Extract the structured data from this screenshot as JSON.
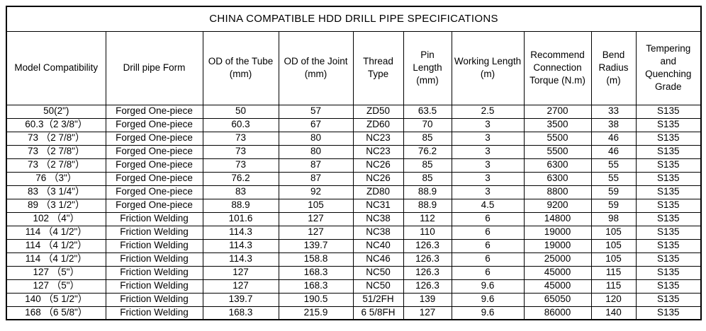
{
  "table": {
    "title": "CHINA COMPATIBLE HDD DRILL PIPE SPECIFICATIONS",
    "headers": [
      "Model Compatibility",
      "Drill pipe Form",
      "OD of the Tube (mm)",
      "OD of the Joint (mm)",
      "Thread Type",
      "Pin Length (mm)",
      "Working Length (m)",
      "Recommend Connection Torque (N.m)",
      "Bend Radius (m)",
      "Tempering and Quenching Grade"
    ],
    "rows": [
      [
        "50(2\")",
        "Forged One-piece",
        "50",
        "57",
        "ZD50",
        "63.5",
        "2.5",
        "2700",
        "33",
        "S135"
      ],
      [
        "60.3（2 3/8\"）",
        "Forged One-piece",
        "60.3",
        "67",
        "ZD60",
        "70",
        "3",
        "3500",
        "38",
        "S135"
      ],
      [
        "73 （2 7/8\"）",
        "Forged One-piece",
        "73",
        "80",
        "NC23",
        "85",
        "3",
        "5500",
        "46",
        "S135"
      ],
      [
        "73 （2 7/8\"）",
        "Forged One-piece",
        "73",
        "80",
        "NC23",
        "76.2",
        "3",
        "5500",
        "46",
        "S135"
      ],
      [
        "73 （2 7/8\"）",
        "Forged One-piece",
        "73",
        "87",
        "NC26",
        "85",
        "3",
        "6300",
        "55",
        "S135"
      ],
      [
        "76 （3\"）",
        "Forged One-piece",
        "76.2",
        "87",
        "NC26",
        "85",
        "3",
        "6300",
        "55",
        "S135"
      ],
      [
        "83 （3 1/4\"）",
        "Forged One-piece",
        "83",
        "92",
        "ZD80",
        "88.9",
        "3",
        "8800",
        "59",
        "S135"
      ],
      [
        "89 （3 1/2\"）",
        "Forged One-piece",
        "88.9",
        "105",
        "NC31",
        "88.9",
        "4.5",
        "9200",
        "59",
        "S135"
      ],
      [
        "102 （4\"）",
        "Friction Welding",
        "101.6",
        "127",
        "NC38",
        "112",
        "6",
        "14800",
        "98",
        "S135"
      ],
      [
        "114 （4 1/2\"）",
        "Friction Welding",
        "114.3",
        "127",
        "NC38",
        "110",
        "6",
        "19000",
        "105",
        "S135"
      ],
      [
        "114 （4 1/2\"）",
        "Friction Welding",
        "114.3",
        "139.7",
        "NC40",
        "126.3",
        "6",
        "19000",
        "105",
        "S135"
      ],
      [
        "114 （4 1/2\"）",
        "Friction Welding",
        "114.3",
        "158.8",
        "NC46",
        "126.3",
        "6",
        "25000",
        "105",
        "S135"
      ],
      [
        "127 （5\"）",
        "Friction Welding",
        "127",
        "168.3",
        "NC50",
        "126.3",
        "6",
        "45000",
        "115",
        "S135"
      ],
      [
        "127 （5\"）",
        "Friction Welding",
        "127",
        "168.3",
        "NC50",
        "126.3",
        "9.6",
        "45000",
        "115",
        "S135"
      ],
      [
        "140 （5 1/2\"）",
        "Friction Welding",
        "139.7",
        "190.5",
        "51/2FH",
        "139",
        "9.6",
        "65050",
        "120",
        "S135"
      ],
      [
        "168 （6 5/8\"）",
        "Friction Welding",
        "168.3",
        "215.9",
        "6 5/8FH",
        "127",
        "9.6",
        "86000",
        "140",
        "S135"
      ]
    ]
  }
}
